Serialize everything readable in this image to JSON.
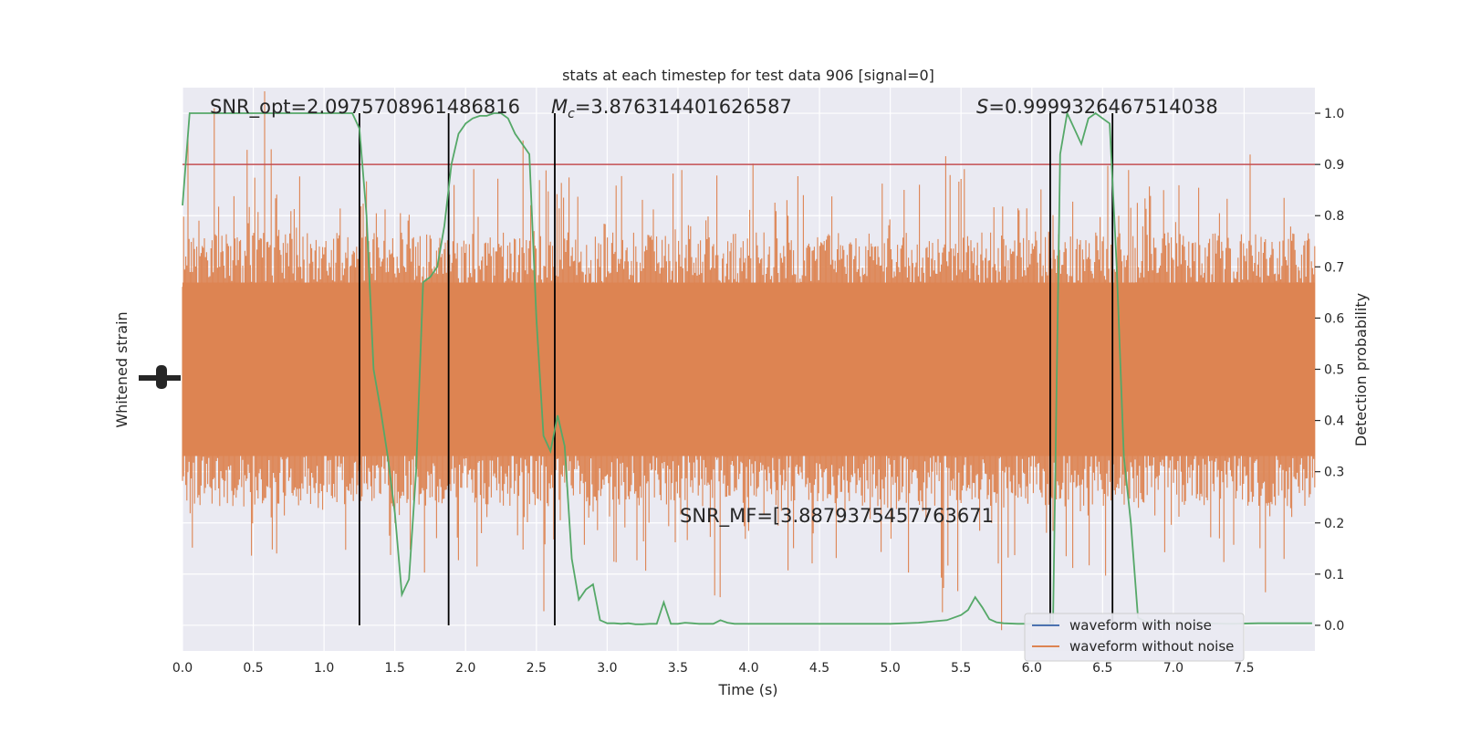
{
  "chart_data": {
    "type": "line",
    "title": "stats at each timestep for test data 906 [signal=0]",
    "xlabel": "Time (s)",
    "ylabel_left": "Whitened strain",
    "ylabel_right": "Detection probability",
    "xlim": [
      0,
      8
    ],
    "ylim_right": [
      -0.05,
      1.05
    ],
    "x_ticks": [
      "0.0",
      "0.5",
      "1.0",
      "1.5",
      "2.0",
      "2.5",
      "3.0",
      "3.5",
      "4.0",
      "4.5",
      "5.0",
      "5.5",
      "6.0",
      "6.5",
      "7.0",
      "7.5"
    ],
    "x_tick_values": [
      0,
      0.5,
      1,
      1.5,
      2,
      2.5,
      3,
      3.5,
      4,
      4.5,
      5,
      5.5,
      6,
      6.5,
      7,
      7.5
    ],
    "y_right_ticks": [
      "0.0",
      "0.1",
      "0.2",
      "0.3",
      "0.4",
      "0.5",
      "0.6",
      "0.7",
      "0.8",
      "0.9",
      "1.0"
    ],
    "y_right_tick_values": [
      0,
      0.1,
      0.2,
      0.3,
      0.4,
      0.5,
      0.6,
      0.7,
      0.8,
      0.9,
      1.0
    ],
    "grid": true,
    "legend_placement": "lower-right",
    "annotations": {
      "snr_opt": "SNR_opt=2.0975708961486816",
      "mc_symbol": "M",
      "mc_sub": "c",
      "mc_value": "=3.876314401626587",
      "s_symbol": "S",
      "s_value": "=0.9999326467514038",
      "snr_mf": "SNR_MF=[3.8879375457763671"
    },
    "threshold": 0.9,
    "vertical_lines_x": [
      1.25,
      1.88,
      2.63,
      6.13,
      6.57
    ],
    "series": [
      {
        "name": "waveform with noise",
        "color": "#4c72b0",
        "kind": "legend-only"
      },
      {
        "name": "waveform without noise",
        "color": "#dd8452",
        "kind": "noise-band"
      },
      {
        "color": "#55a868",
        "kind": "probability",
        "x": [
          0,
          0.05,
          0.1,
          0.2,
          0.3,
          0.4,
          0.5,
          0.6,
          0.7,
          0.8,
          0.9,
          1.0,
          1.1,
          1.2,
          1.25,
          1.3,
          1.35,
          1.4,
          1.45,
          1.5,
          1.55,
          1.6,
          1.65,
          1.7,
          1.75,
          1.8,
          1.85,
          1.9,
          1.95,
          2.0,
          2.05,
          2.1,
          2.15,
          2.2,
          2.25,
          2.3,
          2.35,
          2.4,
          2.45,
          2.5,
          2.55,
          2.6,
          2.65,
          2.7,
          2.75,
          2.8,
          2.85,
          2.9,
          2.95,
          3.0,
          3.05,
          3.1,
          3.15,
          3.2,
          3.25,
          3.3,
          3.35,
          3.4,
          3.45,
          3.5,
          3.55,
          3.6,
          3.65,
          3.7,
          3.75,
          3.8,
          3.85,
          3.9,
          3.95,
          4.0,
          4.1,
          4.2,
          4.4,
          4.6,
          4.8,
          5.0,
          5.2,
          5.4,
          5.5,
          5.55,
          5.6,
          5.65,
          5.7,
          5.75,
          5.8,
          5.9,
          6.0,
          6.1,
          6.13,
          6.15,
          6.2,
          6.25,
          6.3,
          6.35,
          6.4,
          6.45,
          6.5,
          6.55,
          6.6,
          6.65,
          6.7,
          6.75,
          6.8,
          6.85,
          6.9,
          7.0,
          7.2,
          7.4,
          7.6,
          7.8,
          7.98
        ],
        "y": [
          0.82,
          1.0,
          1.0,
          1.0,
          1.0,
          1.0,
          1.0,
          1.0,
          1.0,
          1.0,
          1.0,
          1.0,
          1.0,
          1.0,
          0.97,
          0.8,
          0.5,
          0.42,
          0.33,
          0.22,
          0.06,
          0.09,
          0.3,
          0.67,
          0.68,
          0.7,
          0.78,
          0.9,
          0.96,
          0.98,
          0.99,
          0.995,
          0.995,
          1.0,
          1.0,
          0.99,
          0.96,
          0.94,
          0.92,
          0.6,
          0.37,
          0.34,
          0.41,
          0.35,
          0.13,
          0.05,
          0.07,
          0.08,
          0.01,
          0.004,
          0.004,
          0.003,
          0.004,
          0.002,
          0.002,
          0.003,
          0.003,
          0.045,
          0.003,
          0.003,
          0.005,
          0.004,
          0.003,
          0.003,
          0.003,
          0.01,
          0.005,
          0.003,
          0.003,
          0.003,
          0.003,
          0.003,
          0.003,
          0.003,
          0.003,
          0.003,
          0.005,
          0.01,
          0.02,
          0.03,
          0.055,
          0.035,
          0.012,
          0.006,
          0.004,
          0.003,
          0.003,
          0.003,
          0.003,
          0.003,
          0.92,
          1.0,
          0.97,
          0.94,
          0.99,
          1.0,
          0.99,
          0.98,
          0.7,
          0.33,
          0.2,
          0.015,
          0.008,
          0.006,
          0.005,
          0.004,
          0.004,
          0.003,
          0.004,
          0.004,
          0.004
        ]
      }
    ]
  }
}
